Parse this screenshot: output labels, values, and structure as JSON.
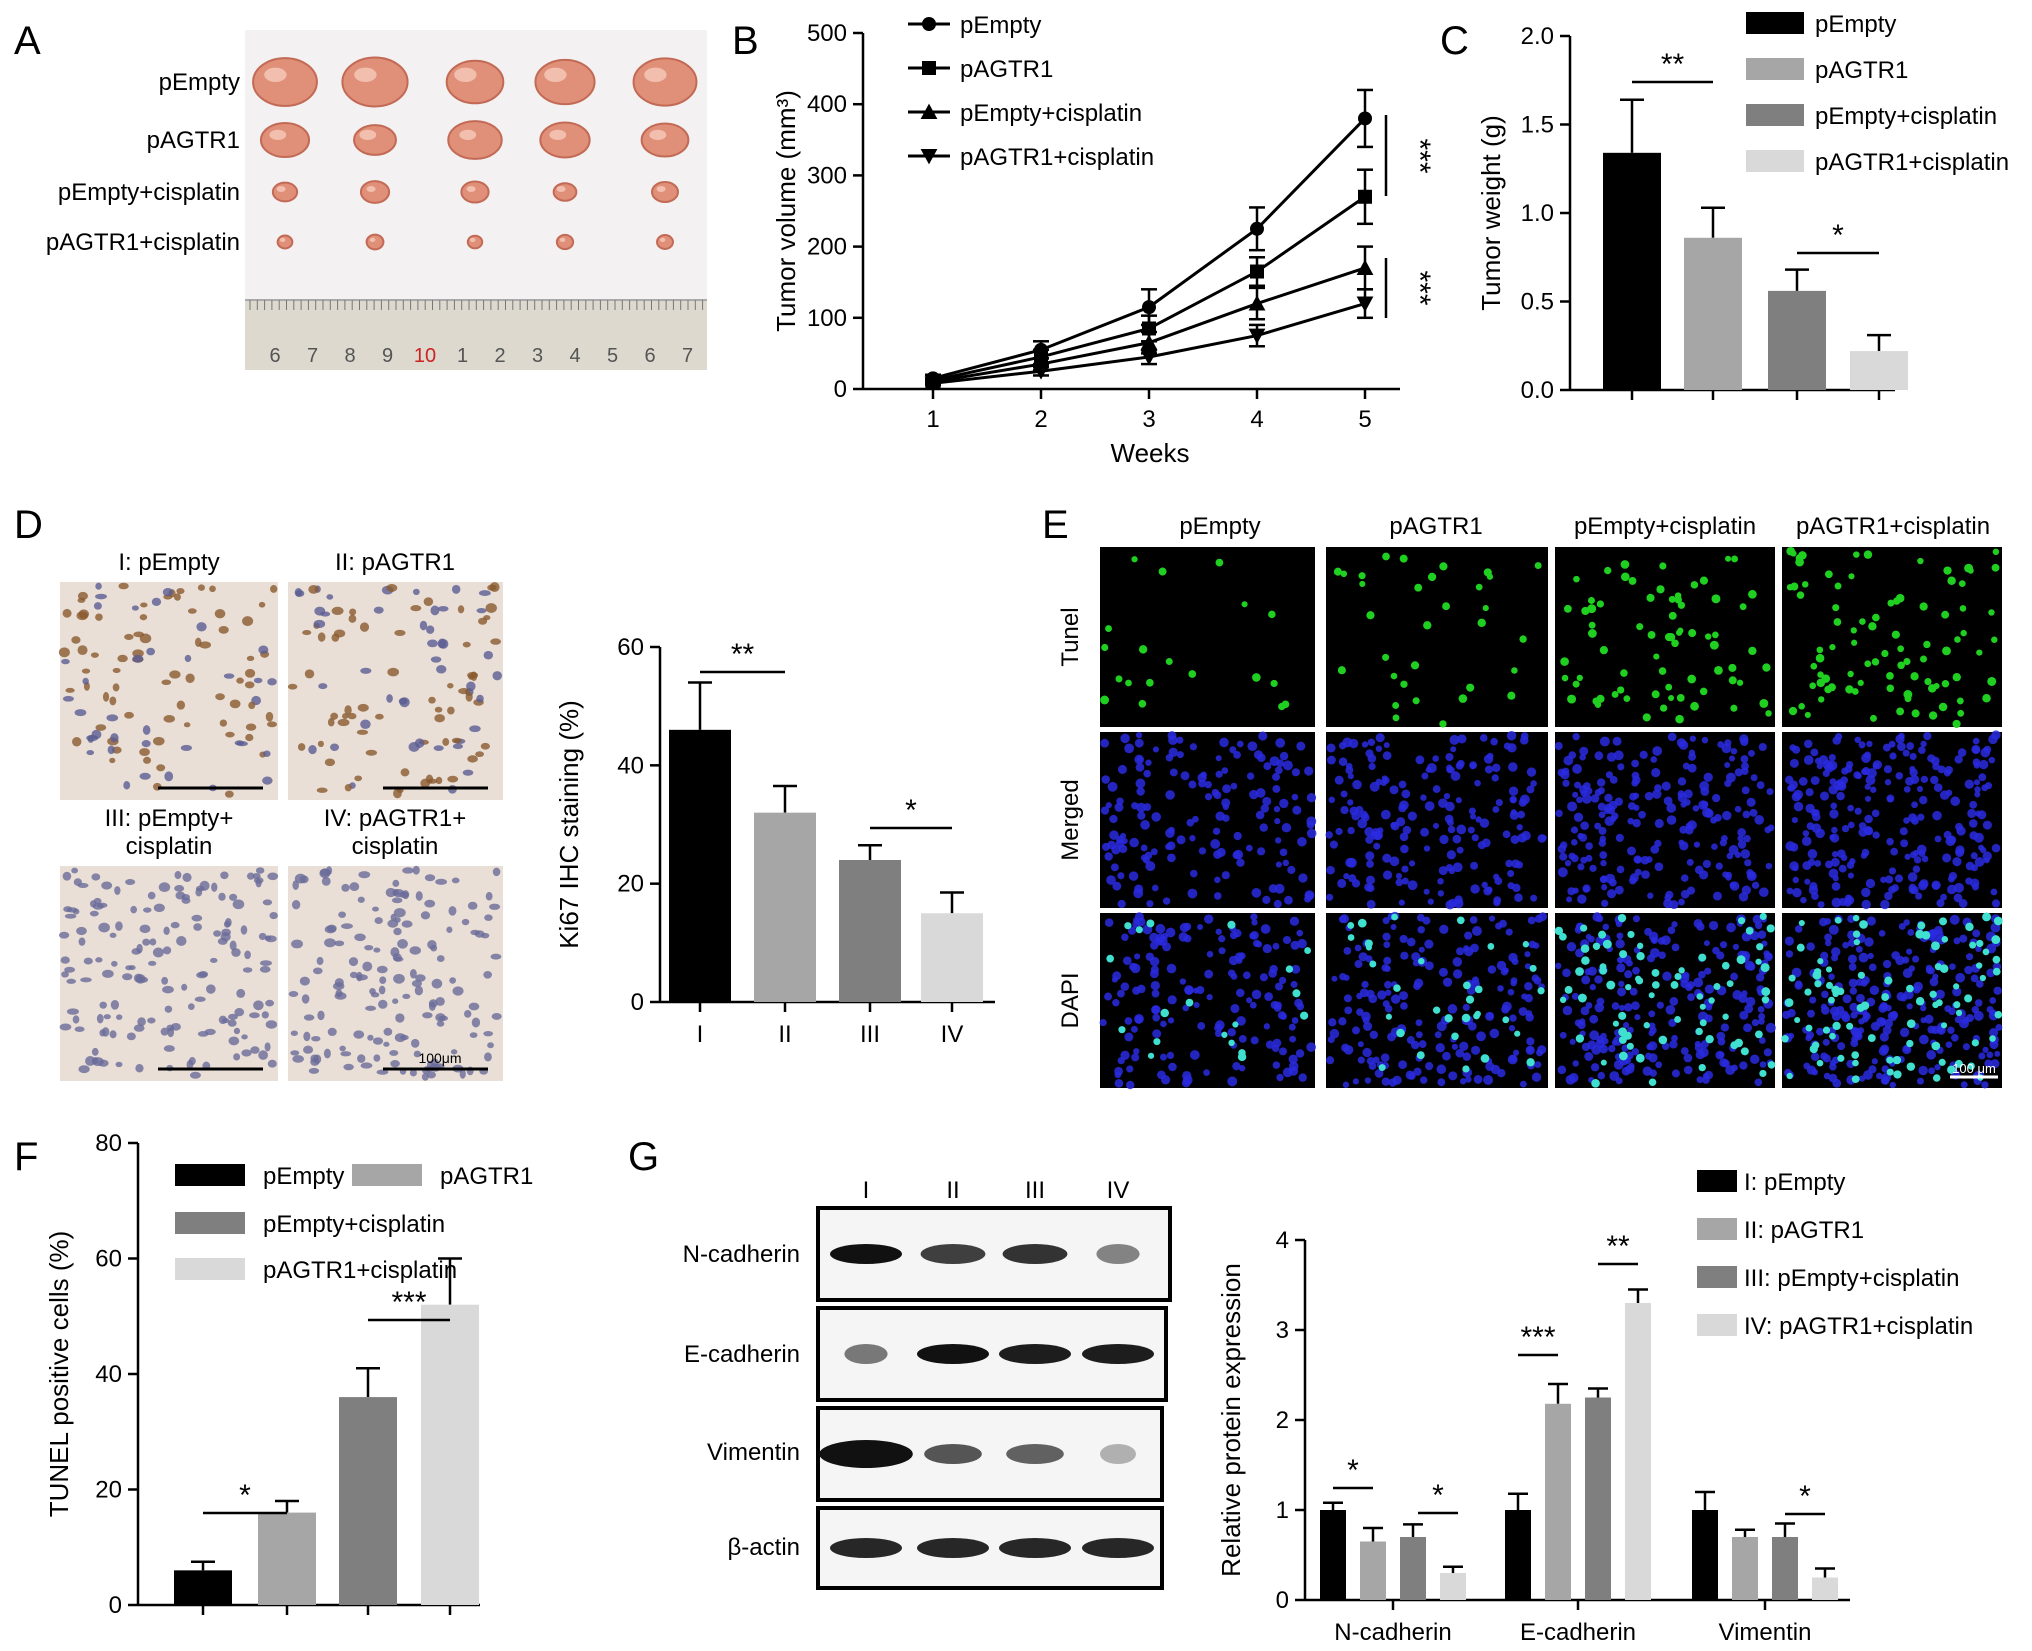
{
  "panels": {
    "A": "A",
    "B": "B",
    "C": "C",
    "D": "D",
    "E": "E",
    "F": "F",
    "G": "G"
  },
  "panel_a": {
    "row_labels": [
      "pEmpty",
      "pAGTR1",
      "pEmpty+cisplatin",
      "pAGTR1+cisplatin"
    ],
    "ruler_numbers": [
      "6",
      "7",
      "8",
      "9",
      "10",
      "1",
      "2",
      "3",
      "4",
      "5",
      "6",
      "7"
    ]
  },
  "panel_d": {
    "image_labels": [
      "I: pEmpty",
      "II: pAGTR1",
      "III: pEmpty+",
      "cisplatin",
      "IV: pAGTR1+",
      "cisplatin"
    ],
    "scale_label": "100μm"
  },
  "panel_e": {
    "columns": [
      "pEmpty",
      "pAGTR1",
      "pEmpty+cisplatin",
      "pAGTR1+cisplatin"
    ],
    "rows": [
      "Tunel",
      "Merged",
      "DAPI"
    ],
    "scale_label": "100 μm"
  },
  "panel_g_blot": {
    "lanes": [
      "I",
      "II",
      "III",
      "IV"
    ],
    "proteins": [
      "N-cadherin",
      "E-cadherin",
      "Vimentin",
      "β-actin"
    ]
  },
  "colors": {
    "black": "#000000",
    "grey1": "#a6a6a6",
    "grey2": "#7f7f7f",
    "grey3": "#d9d9d9",
    "tunel": "#20d020",
    "dapi": "#2a2ae0",
    "merged_cyan": "#40e0d0"
  },
  "chart_data": [
    {
      "panel": "B",
      "type": "line",
      "xlabel": "Weeks",
      "ylabel": "Tumor volume (mm³)",
      "x": [
        1,
        2,
        3,
        4,
        5
      ],
      "ylim": [
        0,
        500
      ],
      "yticks": [
        "0",
        "100",
        "200",
        "300",
        "400",
        "500"
      ],
      "series": [
        {
          "name": "pEmpty",
          "marker": "circle",
          "values": [
            15,
            55,
            115,
            225,
            380
          ],
          "errors": [
            5,
            12,
            25,
            30,
            40
          ]
        },
        {
          "name": "pAGTR1",
          "marker": "square",
          "values": [
            12,
            45,
            85,
            165,
            270
          ],
          "errors": [
            4,
            10,
            18,
            20,
            38
          ]
        },
        {
          "name": "pEmpty+cisplatin",
          "marker": "triangle-up",
          "values": [
            10,
            35,
            65,
            120,
            170
          ],
          "errors": [
            4,
            8,
            15,
            22,
            30
          ]
        },
        {
          "name": "pAGTR1+cisplatin",
          "marker": "triangle-down",
          "values": [
            8,
            25,
            45,
            75,
            120
          ],
          "errors": [
            3,
            6,
            10,
            15,
            20
          ]
        }
      ],
      "annotations": [
        "***",
        "***"
      ]
    },
    {
      "panel": "C",
      "type": "bar",
      "ylabel": "Tumor weight (g)",
      "ylim": [
        0,
        2.0
      ],
      "yticks": [
        "0.0",
        "0.5",
        "1.0",
        "1.5",
        "2.0"
      ],
      "categories": [
        "pEmpty",
        "pAGTR1",
        "pEmpty+cisplatin",
        "pAGTR1+cisplatin"
      ],
      "values": [
        1.34,
        0.86,
        0.56,
        0.22
      ],
      "errors": [
        0.3,
        0.17,
        0.12,
        0.09
      ],
      "annotations": [
        "**",
        "*"
      ]
    },
    {
      "panel": "D",
      "type": "bar",
      "ylabel": "Ki67 IHC staining (%)",
      "ylim": [
        0,
        60
      ],
      "yticks": [
        "0",
        "20",
        "40",
        "60"
      ],
      "categories": [
        "I",
        "II",
        "III",
        "IV"
      ],
      "values": [
        46,
        32,
        24,
        15
      ],
      "errors": [
        8,
        4.5,
        2.5,
        3.5
      ],
      "annotations": [
        "**",
        "*"
      ]
    },
    {
      "panel": "F",
      "type": "bar",
      "ylabel": "TUNEL positive cells (%)",
      "ylim": [
        0,
        80
      ],
      "yticks": [
        "0",
        "20",
        "40",
        "60",
        "80"
      ],
      "categories": [
        "pEmpty",
        "pAGTR1",
        "pEmpty+cisplatin",
        "pAGTR1+cisplatin"
      ],
      "values": [
        6,
        16,
        36,
        52
      ],
      "errors": [
        1.5,
        2.0,
        5.0,
        8.0
      ],
      "annotations": [
        "*",
        "***"
      ]
    },
    {
      "panel": "G",
      "type": "bar",
      "ylabel": "Relative protein expression",
      "ylim": [
        0,
        4
      ],
      "yticks": [
        "0",
        "1",
        "2",
        "3",
        "4"
      ],
      "categories": [
        "N-cadherin",
        "E-cadherin",
        "Vimentin"
      ],
      "series": [
        {
          "name": "I: pEmpty",
          "values": [
            1.0,
            1.0,
            1.0
          ],
          "errors": [
            0.08,
            0.18,
            0.2
          ]
        },
        {
          "name": "II: pAGTR1",
          "values": [
            0.65,
            2.18,
            0.7
          ],
          "errors": [
            0.15,
            0.22,
            0.08
          ]
        },
        {
          "name": "III: pEmpty+cisplatin",
          "values": [
            0.7,
            2.25,
            0.7
          ],
          "errors": [
            0.14,
            0.1,
            0.15
          ]
        },
        {
          "name": "IV: pAGTR1+cisplatin",
          "values": [
            0.3,
            3.3,
            0.25
          ],
          "errors": [
            0.07,
            0.15,
            0.1
          ]
        }
      ],
      "annotations": [
        "*",
        "*",
        "***",
        "**",
        "*"
      ]
    }
  ]
}
